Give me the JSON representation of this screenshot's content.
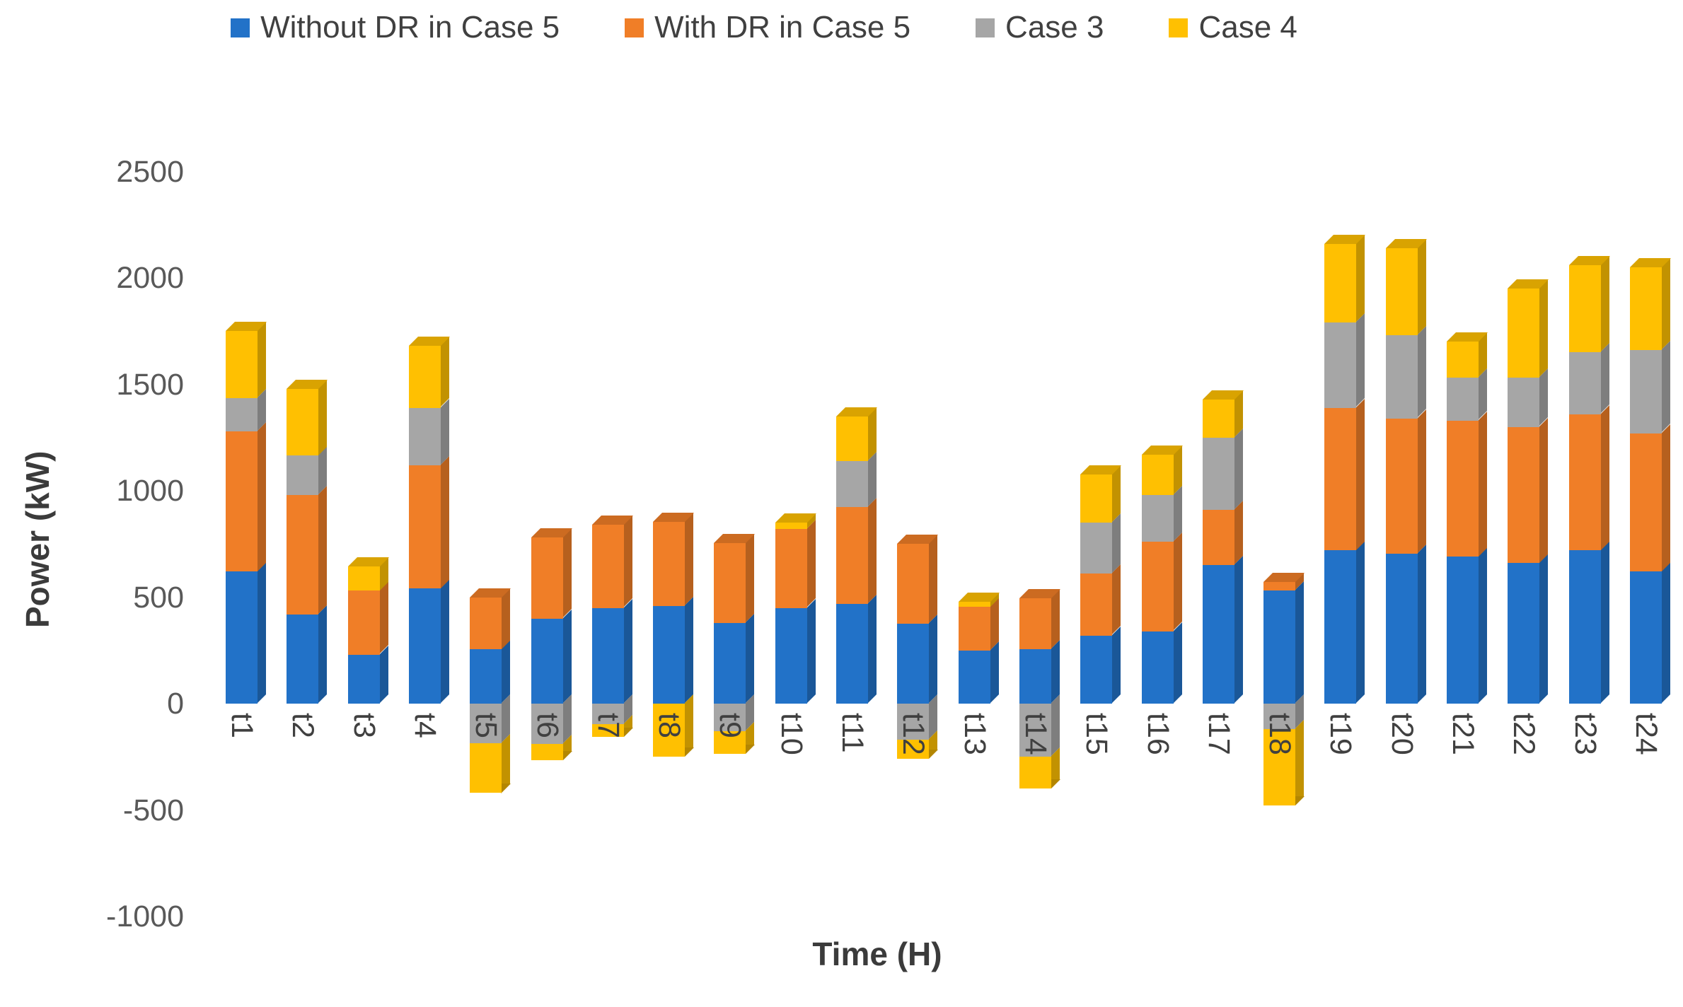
{
  "chart_data": {
    "type": "bar",
    "stacked": true,
    "bar_style": "3d",
    "title": "",
    "xlabel": "Time (H)",
    "ylabel": "Power (kW)",
    "categories": [
      "t1",
      "t2",
      "t3",
      "t4",
      "t5",
      "t6",
      "t7",
      "t8",
      "t9",
      "t10",
      "t11",
      "t12",
      "t13",
      "t14",
      "t15",
      "t16",
      "t17",
      "t18",
      "t19",
      "t20",
      "t21",
      "t22",
      "t23",
      "t24"
    ],
    "series": [
      {
        "name": "Without DR in Case 5",
        "color": "#2272C8",
        "values": [
          620,
          420,
          230,
          540,
          255,
          400,
          450,
          460,
          380,
          450,
          470,
          375,
          250,
          255,
          320,
          340,
          650,
          530,
          720,
          705,
          690,
          660,
          720,
          620
        ]
      },
      {
        "name": "With DR in Case 5",
        "color": "#F07E27",
        "values": [
          660,
          560,
          300,
          580,
          245,
          380,
          390,
          395,
          375,
          370,
          455,
          375,
          205,
          240,
          290,
          420,
          260,
          40,
          670,
          635,
          640,
          640,
          640,
          650
        ]
      },
      {
        "name": "Case 3",
        "color": "#A6A6A6",
        "values": [
          155,
          185,
          0,
          270,
          -185,
          -190,
          -95,
          0,
          -130,
          0,
          215,
          -170,
          0,
          -250,
          240,
          220,
          340,
          -120,
          400,
          390,
          200,
          230,
          290,
          390
        ]
      },
      {
        "name": "Case 4",
        "color": "#FFC001",
        "values": [
          315,
          315,
          115,
          290,
          -235,
          -75,
          -60,
          -250,
          -105,
          30,
          210,
          -90,
          25,
          -150,
          225,
          190,
          180,
          -360,
          370,
          410,
          170,
          420,
          410,
          390
        ]
      }
    ],
    "ylim": [
      -1000,
      2500
    ],
    "yticks": [
      2500,
      2000,
      1500,
      1000,
      500,
      0,
      -500,
      -1000
    ],
    "grid": false,
    "legend_position": "top",
    "axis_text_color": "#595959",
    "label_text_color": "#404040"
  }
}
